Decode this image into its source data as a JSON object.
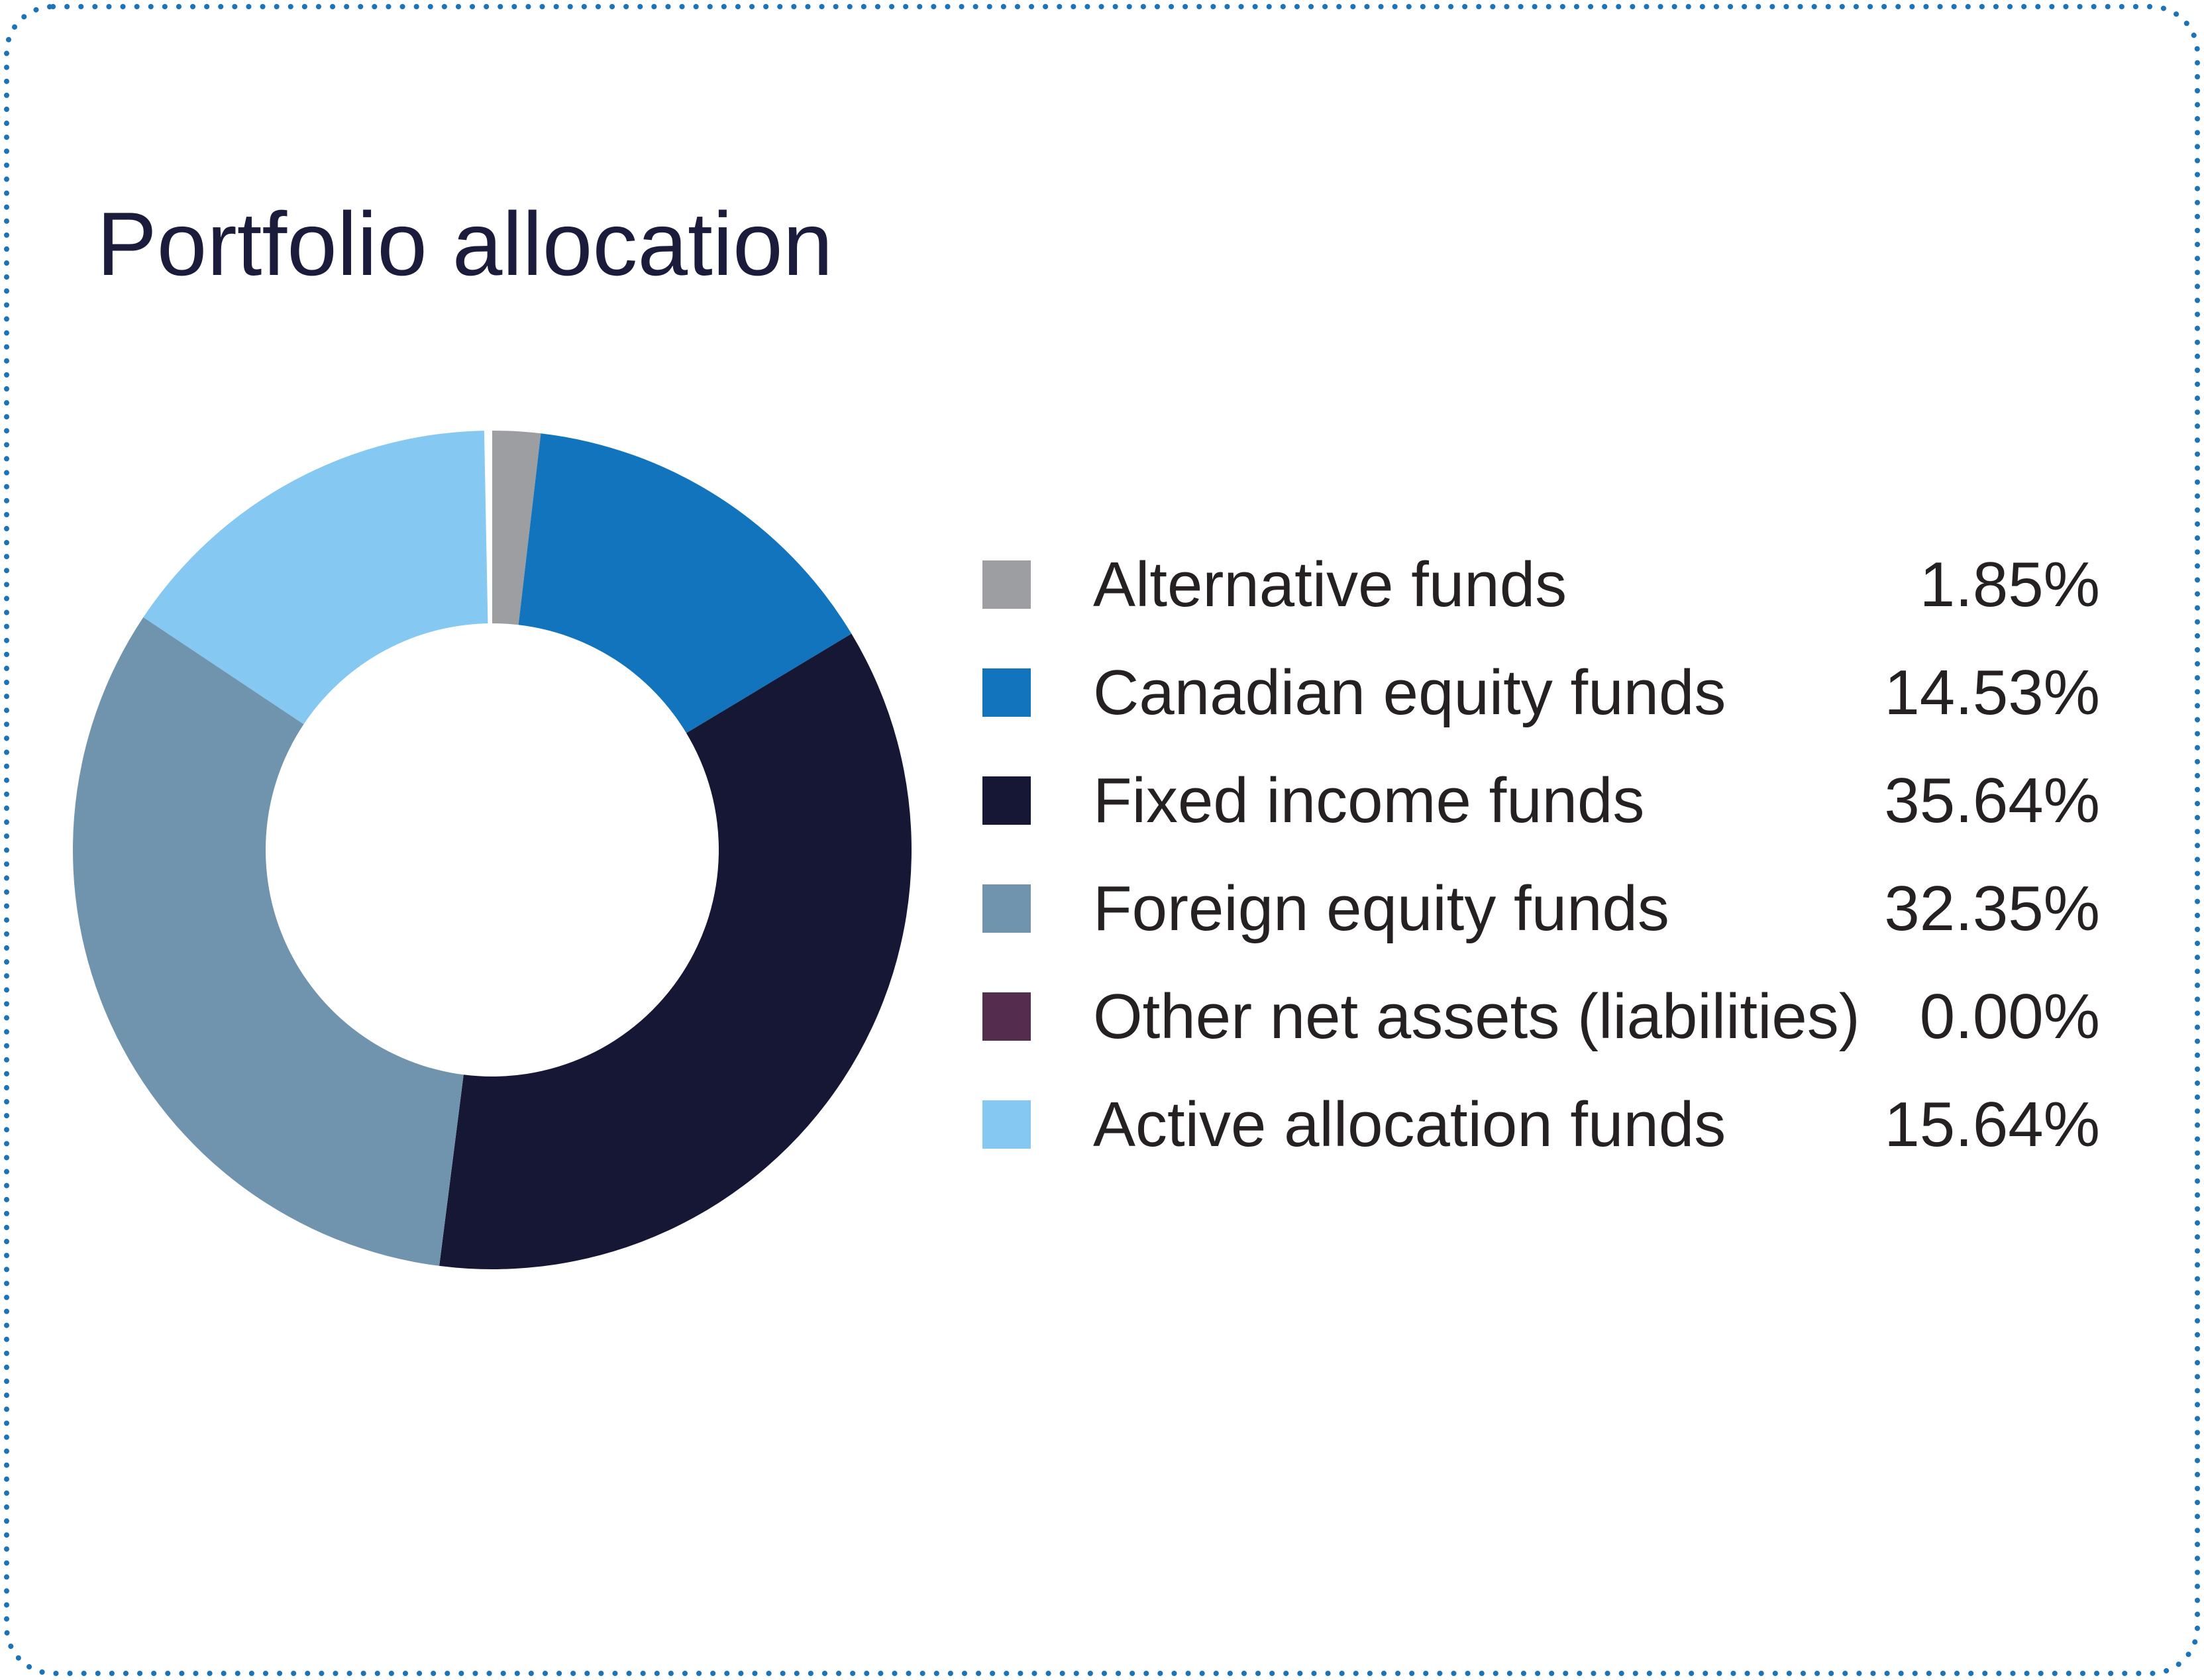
{
  "card": {
    "title": "Portfolio allocation",
    "border_color": "#1b74b9",
    "title_color": "#1b1c3b",
    "text_color": "#252122"
  },
  "chart_data": {
    "type": "pie",
    "subtype": "donut",
    "title": "Portfolio allocation",
    "start_angle_deg": 0,
    "direction": "clockwise",
    "legend_position": "right",
    "inner_radius_ratio": 0.54,
    "gap_at_start_deg": 1.1,
    "items": [
      {
        "label": "Alternative funds",
        "value": 1.85,
        "display": "1.85%",
        "color": "#9c9ea1"
      },
      {
        "label": "Canadian equity funds",
        "value": 14.53,
        "display": "14.53%",
        "color": "#1274bd"
      },
      {
        "label": "Fixed income funds",
        "value": 35.64,
        "display": "35.64%",
        "color": "#161635"
      },
      {
        "label": "Foreign equity funds",
        "value": 32.35,
        "display": "32.35%",
        "color": "#7094ad"
      },
      {
        "label": "Other net assets (liabilities)",
        "value": 0.0,
        "display": "0.00%",
        "color": "#542c4d"
      },
      {
        "label": "Active allocation funds",
        "value": 15.64,
        "display": "15.64%",
        "color": "#85c8f1"
      }
    ]
  }
}
